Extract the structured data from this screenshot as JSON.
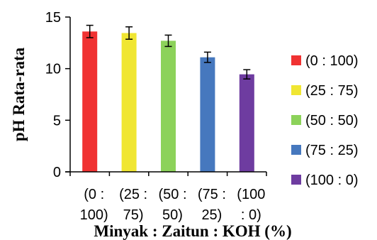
{
  "chart_data": {
    "type": "bar",
    "title": "",
    "xlabel": "Minyak : Zaitun : KOH (%)",
    "ylabel": "pH Rata-rata",
    "ylim": [
      0,
      15
    ],
    "yticks": [
      "0",
      "5",
      "10",
      "15"
    ],
    "categories": [
      [
        "(0 :",
        "100)"
      ],
      [
        "(25 :",
        "75)"
      ],
      [
        "(50 :",
        "50)"
      ],
      [
        "(75 :",
        "25)"
      ],
      [
        "(100",
        ": 0)"
      ]
    ],
    "values": [
      13.6,
      13.45,
      12.7,
      11.1,
      9.45
    ],
    "error": [
      0.6,
      0.6,
      0.55,
      0.5,
      0.45
    ],
    "colors": [
      "#f03232",
      "#f0e632",
      "#8cd25a",
      "#4678be",
      "#6e3ca0"
    ],
    "legend": [
      "(0 : 100)",
      "(25 : 75)",
      "(50 : 50)",
      "(75 : 25)",
      "(100 : 0)"
    ],
    "legend_position": "right",
    "grid": false
  }
}
